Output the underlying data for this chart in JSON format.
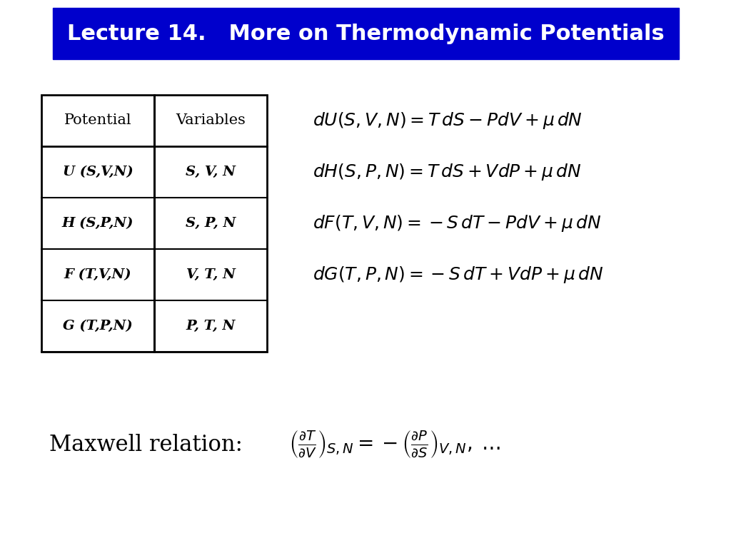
{
  "title": "Lecture 14.   More on Thermodynamic Potentials",
  "title_bg": "#0000CC",
  "title_fg": "#FFFFFF",
  "table_headers": [
    "Potential",
    "Variables"
  ],
  "table_rows": [
    [
      "U (S,V,N)",
      "S, V, N"
    ],
    [
      "H (S,P,N)",
      "S, P, N"
    ],
    [
      "F (T,V,N)",
      "V, T, N"
    ],
    [
      "G (T,P,N)",
      "P, T, N"
    ]
  ],
  "equations": [
    "dU(S,V,N) = T\\,dS - PdV + \\mu\\,dN",
    "dH(S,P,N) = T\\,dS + V\\,dP + \\mu\\,dN",
    "dF(T,V,N) = -S\\,dT - PdV + \\mu\\,dN",
    "dG(T,P,N) = -S\\,dT + V\\,dP + \\mu\\,dN"
  ],
  "maxwell_label": "Maxwell relation:",
  "maxwell_eq": "\\left(\\frac{\\partial T}{\\partial V}\\right)_{S,N} = -\\left(\\frac{\\partial P}{\\partial S}\\right)_{V,N},\\;\\ldots",
  "bg_color": "#FFFFFF"
}
